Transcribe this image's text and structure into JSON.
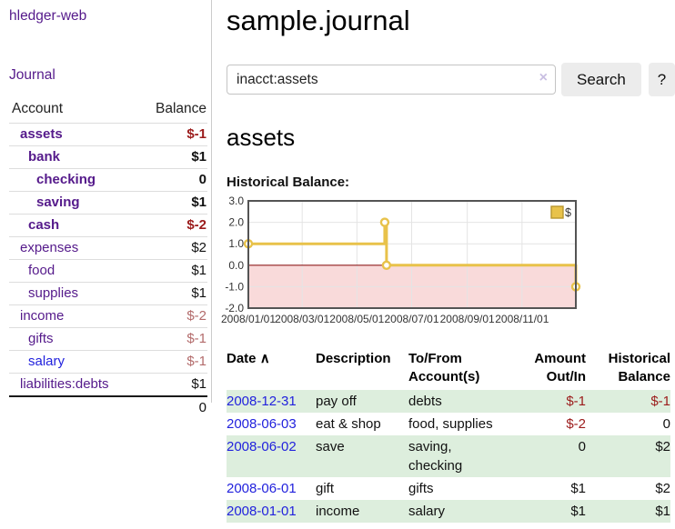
{
  "app": {
    "title": "hledger-web"
  },
  "sidebar": {
    "journal_link": "Journal",
    "accounts_table": {
      "headers": {
        "account": "Account",
        "balance": "Balance"
      },
      "rows": [
        {
          "label": "assets",
          "balance": "$-1",
          "indent": 1,
          "bold": true,
          "balance_class": "neg-strong"
        },
        {
          "label": "bank",
          "balance": "$1",
          "indent": 2,
          "bold": true,
          "balance_class": "pos"
        },
        {
          "label": "checking",
          "balance": "0",
          "indent": 3,
          "bold": true,
          "balance_class": "pos"
        },
        {
          "label": "saving",
          "balance": "$1",
          "indent": 3,
          "bold": true,
          "balance_class": "pos"
        },
        {
          "label": "cash",
          "balance": "$-2",
          "indent": 2,
          "bold": true,
          "balance_class": "neg-strong"
        },
        {
          "label": "expenses",
          "balance": "$2",
          "indent": 1,
          "bold": false,
          "balance_class": "pos"
        },
        {
          "label": "food",
          "balance": "$1",
          "indent": 2,
          "bold": false,
          "balance_class": "pos"
        },
        {
          "label": "supplies",
          "balance": "$1",
          "indent": 2,
          "bold": false,
          "balance_class": "pos"
        },
        {
          "label": "income",
          "balance": "$-2",
          "indent": 1,
          "bold": false,
          "balance_class": "neg-muted"
        },
        {
          "label": "gifts",
          "balance": "$-1",
          "indent": 2,
          "bold": false,
          "balance_class": "neg-muted"
        },
        {
          "label": "salary",
          "balance": "$-1",
          "indent": 2,
          "bold": false,
          "balance_class": "neg-muted",
          "unvisited": true
        },
        {
          "label": "liabilities:debts",
          "balance": "$1",
          "indent": 1,
          "bold": false,
          "balance_class": "pos"
        }
      ],
      "total": "0"
    }
  },
  "main": {
    "title": "sample.journal",
    "search": {
      "value": "inacct:assets",
      "clear_icon": "×",
      "search_label": "Search",
      "help_label": "?"
    },
    "account_heading": "assets",
    "chart_label": "Historical Balance:"
  },
  "chart_data": {
    "type": "line",
    "title": "Historical Balance",
    "step": true,
    "x_range": [
      "2008-01-01",
      "2008-12-31"
    ],
    "ylim": [
      -2.0,
      3.0
    ],
    "yticks": [
      "3.0",
      "2.0",
      "1.0",
      "0.0",
      "-1.0",
      "-2.0"
    ],
    "xticks": [
      "2008/01/01",
      "2008/03/01",
      "2008/05/01",
      "2008/07/01",
      "2008/09/01",
      "2008/11/01"
    ],
    "series": [
      {
        "name": "$",
        "color": "#e8c24a",
        "points": [
          {
            "date": "2008-01-01",
            "value": 1
          },
          {
            "date": "2008-06-01",
            "value": 2
          },
          {
            "date": "2008-06-03",
            "value": 0
          },
          {
            "date": "2008-12-31",
            "value": -1
          }
        ]
      }
    ],
    "legend_position": "top-right",
    "grid": true,
    "negative_region_color": "#f9dada",
    "zero_line_color": "#8f1d1d"
  },
  "register_table": {
    "headers": {
      "date": "Date",
      "sort_icon": "∧",
      "description": "Description",
      "accounts_line1": "To/From",
      "accounts_line2": "Account(s)",
      "amount_line1": "Amount",
      "amount_line2": "Out/In",
      "balance_line1": "Historical",
      "balance_line2": "Balance"
    },
    "rows": [
      {
        "date": "2008-12-31",
        "description": "pay off",
        "accounts": "debts",
        "amount": "$-1",
        "amount_class": "neg-strong",
        "balance": "$-1",
        "balance_class": "neg-strong",
        "shaded": true
      },
      {
        "date": "2008-06-03",
        "description": "eat & shop",
        "accounts": "food, supplies",
        "amount": "$-2",
        "amount_class": "neg-strong",
        "balance": "0",
        "balance_class": "pos",
        "shaded": false
      },
      {
        "date": "2008-06-02",
        "description": "save",
        "accounts": "saving, checking",
        "amount": "0",
        "amount_class": "pos",
        "balance": "$2",
        "balance_class": "pos",
        "shaded": true
      },
      {
        "date": "2008-06-01",
        "description": "gift",
        "accounts": "gifts",
        "amount": "$1",
        "amount_class": "pos",
        "balance": "$2",
        "balance_class": "pos",
        "shaded": false
      },
      {
        "date": "2008-01-01",
        "description": "income",
        "accounts": "salary",
        "amount": "$1",
        "amount_class": "pos",
        "balance": "$1",
        "balance_class": "pos",
        "shaded": true
      }
    ]
  },
  "colors": {
    "link_purple": "#551a8b",
    "link_blue": "#2222dd",
    "negative_strong": "#9b1b1b",
    "negative_muted": "#b36b6b",
    "row_shade_green": "#ddeedd",
    "chart_line_gold": "#e8c24a",
    "chart_negative_region": "#f9dada",
    "chart_zero_line": "#8f1d1d",
    "chart_grid": "#e4e4e4",
    "chart_border": "#545454",
    "button_bg": "#ececec"
  }
}
